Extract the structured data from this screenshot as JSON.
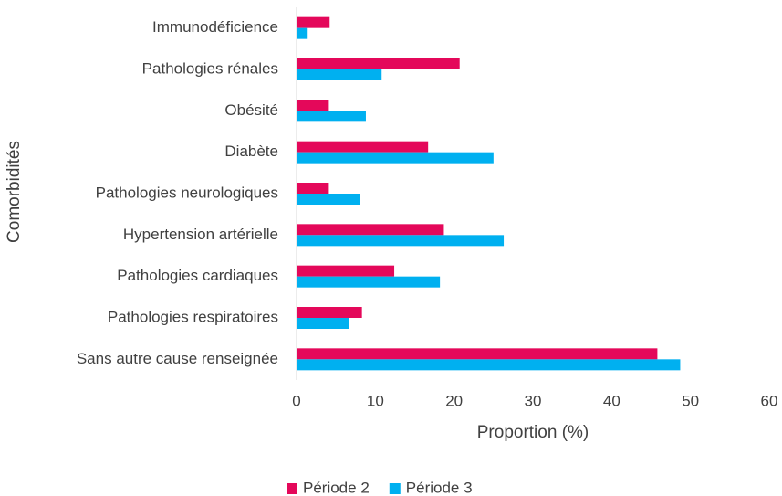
{
  "chart_data": {
    "type": "barh",
    "xlabel": "Proportion (%)",
    "ylabel": "Comorbidités",
    "categories": [
      "Immunodéficience",
      "Pathologies rénales",
      "Obésité",
      "Diabète",
      "Pathologies neurologiques",
      "Hypertension artérielle",
      "Pathologies cardiaques",
      "Pathologies respiratoires",
      "Sans autre cause renseignée"
    ],
    "series": [
      {
        "name": "Période 2",
        "color": "#e4085a",
        "values": [
          4.2,
          20.7,
          4.1,
          16.7,
          4.1,
          18.7,
          12.4,
          8.3,
          45.8
        ]
      },
      {
        "name": "Période 3",
        "color": "#00b0f0",
        "values": [
          1.3,
          10.8,
          8.8,
          25.0,
          8.0,
          26.3,
          18.2,
          6.7,
          48.7
        ]
      }
    ],
    "xlim": [
      0,
      60
    ],
    "xticks": [
      0,
      10,
      20,
      30,
      40,
      50,
      60
    ],
    "grid": false,
    "legend": "bottom"
  }
}
